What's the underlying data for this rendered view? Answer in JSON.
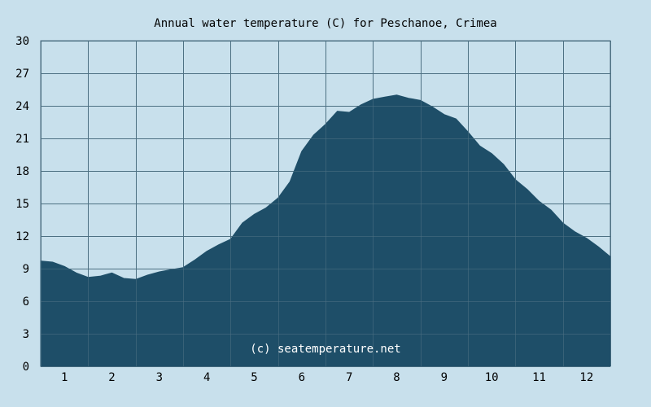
{
  "chart_data": {
    "type": "area",
    "title": "Annual water temperature (C) for Peschanoe, Crimea",
    "xlabel": "",
    "ylabel": "",
    "watermark": "(c) seatemperature.net",
    "xlim": [
      0.5,
      12.5
    ],
    "ylim": [
      0,
      30
    ],
    "y_ticks": [
      0,
      3,
      6,
      9,
      12,
      15,
      18,
      21,
      24,
      27,
      30
    ],
    "x_ticks": [
      {
        "value": 1,
        "label": "1"
      },
      {
        "value": 2,
        "label": "2"
      },
      {
        "value": 3,
        "label": "3"
      },
      {
        "value": 4,
        "label": "4"
      },
      {
        "value": 5,
        "label": "5"
      },
      {
        "value": 6,
        "label": "6"
      },
      {
        "value": 7,
        "label": "7"
      },
      {
        "value": 8,
        "label": "8"
      },
      {
        "value": 9,
        "label": "9"
      },
      {
        "value": 10,
        "label": "10"
      },
      {
        "value": 11,
        "label": "11"
      },
      {
        "value": 12,
        "label": "12"
      }
    ],
    "grid": true,
    "series": [
      {
        "x": [
          0.5,
          0.75,
          1.0,
          1.25,
          1.5,
          1.75,
          2.0,
          2.25,
          2.5,
          2.75,
          3.0,
          3.25,
          3.5,
          3.75,
          4.0,
          4.25,
          4.5,
          4.75,
          5.0,
          5.25,
          5.5,
          5.75,
          6.0,
          6.25,
          6.5,
          6.75,
          7.0,
          7.25,
          7.5,
          7.75,
          8.0,
          8.25,
          8.5,
          8.75,
          9.0,
          9.25,
          9.5,
          9.75,
          10.0,
          10.25,
          10.5,
          10.75,
          11.0,
          11.25,
          11.5,
          11.75,
          12.0,
          12.25,
          12.5
        ],
        "values": [
          9.7,
          9.6,
          9.2,
          8.6,
          8.2,
          8.3,
          8.6,
          8.1,
          8.0,
          8.4,
          8.7,
          8.9,
          9.1,
          9.8,
          10.6,
          11.2,
          11.7,
          13.2,
          14.0,
          14.6,
          15.5,
          17.0,
          19.8,
          21.3,
          22.3,
          23.5,
          23.4,
          24.1,
          24.6,
          24.8,
          25.0,
          24.7,
          24.5,
          23.9,
          23.2,
          22.8,
          21.6,
          20.3,
          19.6,
          18.6,
          17.2,
          16.3,
          15.2,
          14.4,
          13.2,
          12.4,
          11.8,
          11.0,
          10.1
        ]
      }
    ],
    "colors": {
      "background": "#c8e0ec",
      "fill": "#1e4e68",
      "grid": "#4f7184",
      "text": "#000000",
      "watermark": "#ffffff"
    }
  }
}
